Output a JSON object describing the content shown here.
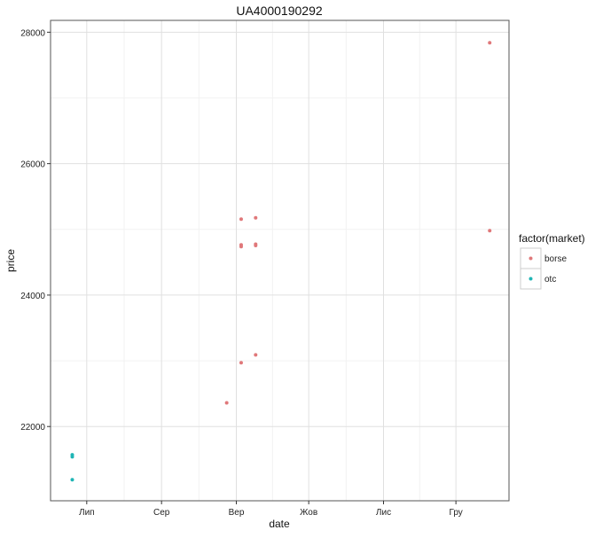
{
  "chart_data": {
    "type": "scatter",
    "title": "UA4000190292",
    "xlabel": "date",
    "ylabel": "price",
    "x_type": "date",
    "xlim": [
      "2016-06-16",
      "2016-12-23"
    ],
    "ylim": [
      20870,
      28180
    ],
    "x_ticks": [
      {
        "date": "2016-07-01",
        "label": "Лип"
      },
      {
        "date": "2016-08-01",
        "label": "Сер"
      },
      {
        "date": "2016-09-01",
        "label": "Вер"
      },
      {
        "date": "2016-10-01",
        "label": "Жов"
      },
      {
        "date": "2016-11-01",
        "label": "Лис"
      },
      {
        "date": "2016-12-01",
        "label": "Гру"
      }
    ],
    "y_ticks": [
      22000,
      24000,
      26000,
      28000
    ],
    "grid": true,
    "legend": {
      "title": "factor(market)",
      "placement": "right"
    },
    "series": [
      {
        "name": "borse",
        "color": "#e0787a",
        "points": [
          {
            "x": "2016-08-28",
            "y": 22360
          },
          {
            "x": "2016-09-03",
            "y": 25155
          },
          {
            "x": "2016-09-03",
            "y": 24765
          },
          {
            "x": "2016-09-03",
            "y": 24738
          },
          {
            "x": "2016-09-03",
            "y": 22970
          },
          {
            "x": "2016-09-09",
            "y": 25175
          },
          {
            "x": "2016-09-09",
            "y": 24775
          },
          {
            "x": "2016-09-09",
            "y": 24755
          },
          {
            "x": "2016-09-09",
            "y": 23090
          },
          {
            "x": "2016-12-15",
            "y": 27840
          },
          {
            "x": "2016-12-15",
            "y": 24980
          }
        ]
      },
      {
        "name": "otc",
        "color": "#1fb5b5",
        "points": [
          {
            "x": "2016-06-25",
            "y": 21570
          },
          {
            "x": "2016-06-25",
            "y": 21540
          },
          {
            "x": "2016-06-25",
            "y": 21190
          }
        ]
      }
    ]
  }
}
